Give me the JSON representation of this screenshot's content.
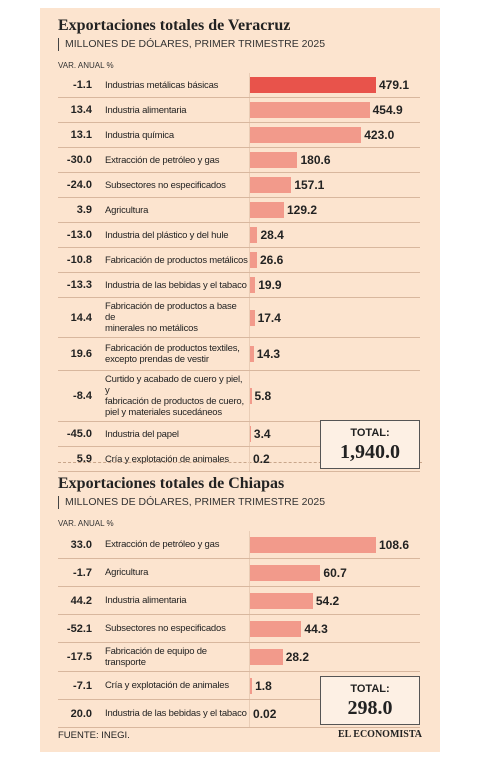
{
  "chart_data": [
    {
      "type": "bar",
      "title": "Exportaciones totales de Veracruz",
      "subtitle": "MILLONES DE DÓLARES, PRIMER TRIMESTRE 2025",
      "change_header": "VAR. ANUAL %",
      "categories": [
        "Industrias metálicas básicas",
        "Industria alimentaria",
        "Industria química",
        "Extracción de petróleo y gas",
        "Subsectores no especificados",
        "Agricultura",
        "Industria del plástico y del hule",
        "Fabricación de productos metálicos",
        "Industria de las bebidas y el tabaco",
        "Fabricación de productos a base de\nminerales no metálicos",
        "Fabricación de productos textiles,\nexcepto prendas de vestir",
        "Curtido y acabado de cuero y piel, y\nfabricación de productos de cuero,\npiel y materiales sucedáneos",
        "Industria del papel",
        "Cría y explotación de animales"
      ],
      "changes": [
        "-1.1",
        "13.4",
        "13.1",
        "-30.0",
        "-24.0",
        "3.9",
        "-13.0",
        "-10.8",
        "-13.3",
        "14.4",
        "19.6",
        "-8.4",
        "-45.0",
        "5.9"
      ],
      "values": [
        479.1,
        454.9,
        423.0,
        180.6,
        157.1,
        129.2,
        28.4,
        26.6,
        19.9,
        17.4,
        14.3,
        5.8,
        3.4,
        0.2
      ],
      "value_labels": [
        "479.1",
        "454.9",
        "423.0",
        "180.6",
        "157.1",
        "129.2",
        "28.4",
        "26.6",
        "19.9",
        "17.4",
        "14.3",
        "5.8",
        "3.4",
        "0.2"
      ],
      "colors": [
        "#e8534b",
        "#f29a8b",
        "#f29a8b",
        "#f29a8b",
        "#f29a8b",
        "#f29a8b",
        "#f29a8b",
        "#f29a8b",
        "#f29a8b",
        "#f29a8b",
        "#f29a8b",
        "#f29a8b",
        "#f29a8b",
        "#f29a8b"
      ],
      "total_label": "TOTAL:",
      "total": {
        "value": 1940.0,
        "label": "1,940.0"
      }
    },
    {
      "type": "bar",
      "title": "Exportaciones totales de Chiapas",
      "subtitle": "MILLONES DE DÓLARES, PRIMER TRIMESTRE 2025",
      "change_header": "VAR. ANUAL %",
      "categories": [
        "Extracción de petróleo y gas",
        "Agricultura",
        "Industria alimentaria",
        "Subsectores no especificados",
        "Fabricación de equipo de transporte",
        "Cría y explotación de animales",
        "Industria de las bebidas y el tabaco"
      ],
      "changes": [
        "33.0",
        "-1.7",
        "44.2",
        "-52.1",
        "-17.5",
        "-7.1",
        "20.0"
      ],
      "values": [
        108.6,
        60.7,
        54.2,
        44.3,
        28.2,
        1.8,
        0.02
      ],
      "value_labels": [
        "108.6",
        "60.7",
        "54.2",
        "44.3",
        "28.2",
        "1.8",
        "0.02"
      ],
      "colors": [
        "#f29a8b",
        "#f29a8b",
        "#f29a8b",
        "#f29a8b",
        "#f29a8b",
        "#f29a8b",
        "#f29a8b"
      ],
      "total_label": "TOTAL:",
      "total": {
        "value": 298.0,
        "label": "298.0"
      }
    }
  ],
  "source": "FUENTE: INEGI.",
  "brand": "EL ECONOMISTA"
}
